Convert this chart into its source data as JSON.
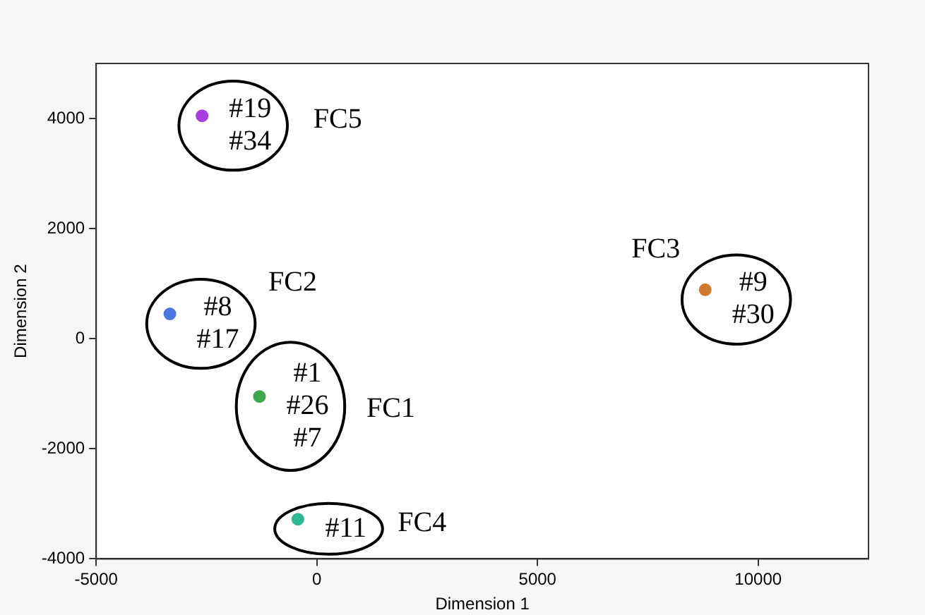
{
  "chart_data": {
    "type": "scatter",
    "xlabel": "Dimension 1",
    "ylabel": "Dimension 2",
    "x": [
      -2600,
      -3330,
      -1300,
      -430,
      8800
    ],
    "values": [
      4050,
      450,
      -1050,
      -3280,
      890
    ],
    "colors": [
      "#a93ee0",
      "#4a78e0",
      "#3ea84a",
      "#2fb894",
      "#d07a30"
    ],
    "xlim": [
      -5000,
      12500
    ],
    "xticks": [
      -5000,
      0,
      5000,
      10000
    ],
    "ylim": [
      -4000,
      5000
    ],
    "yticks": [
      -4000,
      -2000,
      0,
      2000,
      4000
    ],
    "grid": false,
    "legend": false,
    "marker": "circle",
    "annotations": [
      "#19\n#34",
      "FC5",
      "#8\n#17",
      "FC2",
      "#1\n#26\n#7",
      "FC1",
      "#11",
      "FC4",
      "#9\n#30",
      "FC3"
    ]
  }
}
